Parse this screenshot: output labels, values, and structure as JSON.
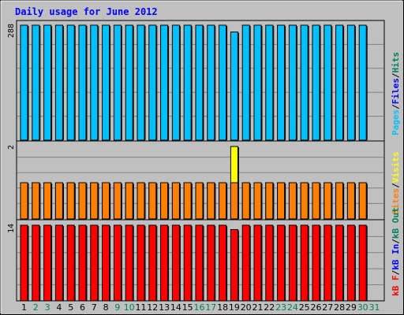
{
  "title": "Daily usage for June 2012",
  "colors": {
    "background": "#c0c0c0",
    "plot_bg": "#c0c0c0",
    "grid": "#808080",
    "title": "#0000ff",
    "hits": "#00805c",
    "files": "#0000ff",
    "pages": "#00c0ff",
    "visits": "#ffff00",
    "sites": "#ff8000",
    "kb_out": "#ff8000",
    "kb_in": "#0000ff",
    "kb_f": "#ff0000",
    "weekend": "#00805c",
    "weekday": "#000000",
    "bar_outline": "#000000"
  },
  "chart_data": [
    {
      "type": "bar",
      "panel": "top",
      "ymax_label": "288",
      "ylim": [
        0,
        288
      ],
      "legend_right": [
        {
          "text": "Pages",
          "color_key": "pages"
        },
        {
          "text": "/",
          "color_key": "weekday"
        },
        {
          "text": "Files",
          "color_key": "files"
        },
        {
          "text": "/",
          "color_key": "weekday"
        },
        {
          "text": "Hits",
          "color_key": "hits"
        }
      ],
      "series": [
        {
          "key": "pages",
          "values": [
            288,
            288,
            288,
            288,
            288,
            288,
            288,
            288,
            288,
            288,
            288,
            288,
            288,
            288,
            288,
            288,
            288,
            288,
            271,
            288,
            288,
            288,
            288,
            288,
            288,
            288,
            288,
            288,
            288,
            288
          ]
        }
      ]
    },
    {
      "type": "bar",
      "panel": "middle",
      "ymax_label": "2",
      "ylim": [
        0,
        2
      ],
      "legend_right": [
        {
          "text": "Sites",
          "color_key": "sites"
        },
        {
          "text": "/",
          "color_key": "weekday"
        },
        {
          "text": "Visits",
          "color_key": "visits"
        }
      ],
      "series": [
        {
          "key": "visits",
          "values": [
            1,
            1,
            1,
            1,
            1,
            1,
            1,
            1,
            1,
            1,
            1,
            1,
            1,
            1,
            1,
            1,
            1,
            1,
            2,
            1,
            1,
            1,
            1,
            1,
            1,
            1,
            1,
            1,
            1,
            1
          ]
        },
        {
          "key": "sites",
          "values": [
            1,
            1,
            1,
            1,
            1,
            1,
            1,
            1,
            1,
            1,
            1,
            1,
            1,
            1,
            1,
            1,
            1,
            1,
            1,
            1,
            1,
            1,
            1,
            1,
            1,
            1,
            1,
            1,
            1,
            1
          ]
        }
      ]
    },
    {
      "type": "bar",
      "panel": "bottom",
      "ymax_label": "14",
      "ylim": [
        0,
        14
      ],
      "legend_right": [
        {
          "text": "kB F",
          "color_key": "kb_f"
        },
        {
          "text": "/",
          "color_key": "weekday"
        },
        {
          "text": "kB In",
          "color_key": "kb_in"
        },
        {
          "text": "/",
          "color_key": "weekday"
        },
        {
          "text": "kB Out",
          "color_key": "hits"
        }
      ],
      "series": [
        {
          "key": "kb_f",
          "values": [
            14,
            14,
            14,
            14,
            14,
            14,
            14,
            14,
            14,
            14,
            14,
            14,
            14,
            14,
            14,
            14,
            14,
            14,
            13.2,
            14,
            14,
            14,
            14,
            14,
            14,
            14,
            14,
            14,
            14,
            14
          ]
        }
      ]
    }
  ],
  "x_axis": {
    "labels": [
      "1",
      "2",
      "3",
      "4",
      "5",
      "6",
      "7",
      "8",
      "9",
      "10",
      "11",
      "12",
      "13",
      "14",
      "15",
      "16",
      "17",
      "18",
      "19",
      "20",
      "21",
      "22",
      "23",
      "24",
      "25",
      "26",
      "27",
      "28",
      "29",
      "30",
      "31"
    ],
    "weekend_days": [
      2,
      3,
      9,
      10,
      16,
      17,
      23,
      24,
      30,
      31
    ]
  }
}
